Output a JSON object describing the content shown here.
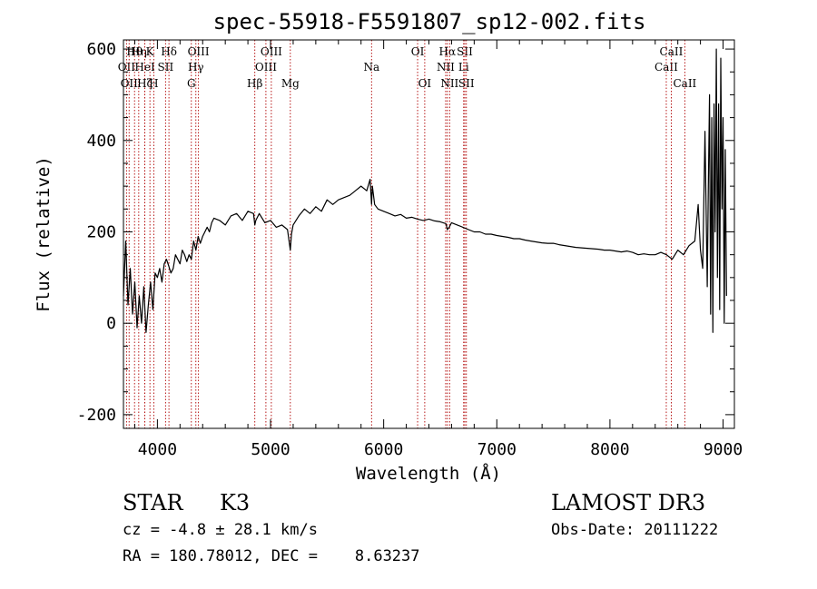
{
  "chart_data": {
    "type": "line",
    "title": "spec-55918-F5591807_sp12-002.fits",
    "xlabel": "Wavelength (Å)",
    "ylabel": "Flux (relative)",
    "xlim": [
      3700,
      9100
    ],
    "ylim": [
      -230,
      620
    ],
    "x_ticks": [
      4000,
      5000,
      6000,
      7000,
      8000,
      9000
    ],
    "y_ticks": [
      -200,
      0,
      200,
      400,
      600
    ],
    "series": [
      {
        "name": "flux",
        "x": [
          3700,
          3720,
          3740,
          3760,
          3780,
          3800,
          3820,
          3840,
          3860,
          3880,
          3900,
          3920,
          3940,
          3960,
          3980,
          4000,
          4020,
          4040,
          4060,
          4080,
          4100,
          4120,
          4140,
          4160,
          4180,
          4200,
          4220,
          4240,
          4260,
          4280,
          4300,
          4320,
          4340,
          4360,
          4380,
          4400,
          4420,
          4440,
          4460,
          4480,
          4500,
          4550,
          4600,
          4650,
          4700,
          4750,
          4800,
          4850,
          4861,
          4870,
          4900,
          4950,
          5000,
          5050,
          5100,
          5150,
          5175,
          5185,
          5200,
          5250,
          5300,
          5350,
          5400,
          5450,
          5500,
          5550,
          5600,
          5650,
          5700,
          5750,
          5800,
          5850,
          5880,
          5893,
          5900,
          5920,
          5950,
          6000,
          6050,
          6100,
          6150,
          6200,
          6250,
          6300,
          6350,
          6400,
          6450,
          6500,
          6550,
          6563,
          6580,
          6600,
          6650,
          6700,
          6750,
          6800,
          6850,
          6900,
          6950,
          7000,
          7050,
          7100,
          7150,
          7200,
          7250,
          7300,
          7350,
          7400,
          7450,
          7500,
          7550,
          7600,
          7650,
          7700,
          7750,
          7800,
          7850,
          7900,
          7950,
          8000,
          8050,
          8100,
          8150,
          8200,
          8250,
          8300,
          8350,
          8400,
          8450,
          8500,
          8550,
          8600,
          8650,
          8700,
          8750,
          8780,
          8800,
          8820,
          8840,
          8860,
          8870,
          8880,
          8890,
          8900,
          8910,
          8920,
          8930,
          8940,
          8950,
          8960,
          8970,
          8980,
          8990,
          9000,
          9010,
          9020,
          9030
        ],
        "y": [
          60,
          180,
          40,
          120,
          20,
          90,
          -10,
          60,
          0,
          80,
          -20,
          40,
          90,
          30,
          110,
          100,
          120,
          90,
          130,
          140,
          125,
          110,
          120,
          150,
          140,
          130,
          160,
          150,
          135,
          150,
          140,
          180,
          160,
          190,
          175,
          190,
          200,
          210,
          200,
          220,
          230,
          225,
          215,
          235,
          240,
          225,
          245,
          240,
          215,
          225,
          240,
          220,
          225,
          210,
          215,
          205,
          160,
          195,
          215,
          235,
          250,
          240,
          255,
          245,
          270,
          260,
          270,
          275,
          280,
          290,
          300,
          290,
          315,
          260,
          300,
          260,
          250,
          245,
          240,
          235,
          238,
          230,
          232,
          228,
          225,
          228,
          224,
          222,
          218,
          205,
          210,
          220,
          215,
          210,
          205,
          200,
          200,
          195,
          195,
          192,
          190,
          188,
          185,
          185,
          182,
          180,
          178,
          176,
          175,
          175,
          172,
          170,
          168,
          166,
          165,
          164,
          163,
          162,
          160,
          160,
          158,
          156,
          158,
          155,
          150,
          152,
          150,
          150,
          155,
          150,
          140,
          160,
          150,
          170,
          180,
          260,
          160,
          120,
          420,
          80,
          300,
          500,
          20,
          450,
          -20,
          480,
          200,
          600,
          100,
          480,
          30,
          580,
          250,
          450,
          0,
          380,
          60
        ]
      }
    ],
    "line_markers": [
      {
        "wavelength": 3727,
        "label": "OII",
        "row": 2
      },
      {
        "wavelength": 3750,
        "label": "OII",
        "row": 3
      },
      {
        "wavelength": 3798,
        "label": "Hθ",
        "row": 1
      },
      {
        "wavelength": 3835,
        "label": "Hη",
        "row": 1
      },
      {
        "wavelength": 3889,
        "label": "HeI",
        "row": 2
      },
      {
        "wavelength": 3889,
        "label": "Hζ",
        "row": 3
      },
      {
        "wavelength": 3934,
        "label": "K",
        "row": 1
      },
      {
        "wavelength": 3968,
        "label": "H",
        "row": 3
      },
      {
        "wavelength": 4072,
        "label": "SII",
        "row": 2
      },
      {
        "wavelength": 4102,
        "label": "Hδ",
        "row": 1
      },
      {
        "wavelength": 4300,
        "label": "G",
        "row": 3
      },
      {
        "wavelength": 4340,
        "label": "Hγ",
        "row": 2
      },
      {
        "wavelength": 4363,
        "label": "OIII",
        "row": 1
      },
      {
        "wavelength": 4861,
        "label": "Hβ",
        "row": 3
      },
      {
        "wavelength": 4959,
        "label": "OIII",
        "row": 2
      },
      {
        "wavelength": 5007,
        "label": "OIII",
        "row": 1
      },
      {
        "wavelength": 5175,
        "label": "Mg",
        "row": 3
      },
      {
        "wavelength": 5893,
        "label": "Na",
        "row": 2
      },
      {
        "wavelength": 6300,
        "label": "OI",
        "row": 1
      },
      {
        "wavelength": 6363,
        "label": "OI",
        "row": 3
      },
      {
        "wavelength": 6548,
        "label": "NII",
        "row": 2
      },
      {
        "wavelength": 6563,
        "label": "Hα",
        "row": 1
      },
      {
        "wavelength": 6583,
        "label": "NII",
        "row": 3
      },
      {
        "wavelength": 6707,
        "label": "Li",
        "row": 2
      },
      {
        "wavelength": 6717,
        "label": "SII",
        "row": 1
      },
      {
        "wavelength": 6731,
        "label": "SII",
        "row": 3
      },
      {
        "wavelength": 8498,
        "label": "CaII",
        "row": 2
      },
      {
        "wavelength": 8542,
        "label": "CaII",
        "row": 1
      },
      {
        "wavelength": 8662,
        "label": "CaII",
        "row": 3
      }
    ]
  },
  "info": {
    "object_class": "STAR",
    "subclass": "K3",
    "survey": "LAMOST DR3",
    "redshift": "cz = -4.8 ± 28.1 km/s",
    "obs_date": "Obs-Date: 20111222",
    "coords": "RA = 180.78012, DEC =    8.63237"
  },
  "colors": {
    "line": "#000000",
    "marker": "#b00000",
    "text": "#000000"
  }
}
